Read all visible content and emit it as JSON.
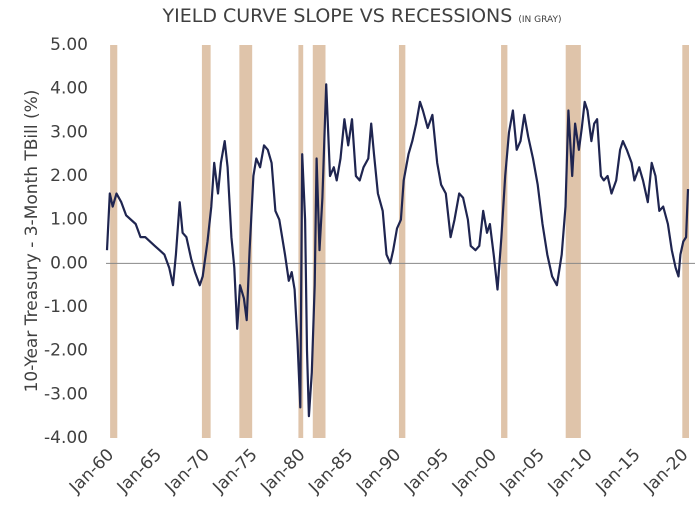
{
  "chart_data": {
    "type": "line",
    "title": "YIELD CURVE SLOPE VS RECESSIONS",
    "subtitle": "(IN GRAY)",
    "y_label": "10-Year Treasury - 3-Month TBill (%)",
    "xlim": [
      1959.9,
      2020.8
    ],
    "ylim": [
      -4,
      5
    ],
    "yticks": [
      {
        "value": 5,
        "label": "5.00"
      },
      {
        "value": 4,
        "label": "4.00"
      },
      {
        "value": 3,
        "label": "3.00"
      },
      {
        "value": 2,
        "label": "2.00"
      },
      {
        "value": 1,
        "label": "1.00"
      },
      {
        "value": 0,
        "label": "0.00"
      },
      {
        "value": -1,
        "label": "-1.00"
      },
      {
        "value": -2,
        "label": "-2.00"
      },
      {
        "value": -3,
        "label": "-3.00"
      },
      {
        "value": -4,
        "label": "-4.00"
      }
    ],
    "xticks": [
      {
        "value": 1960,
        "label": "Jan-60"
      },
      {
        "value": 1965,
        "label": "Jan-65"
      },
      {
        "value": 1970,
        "label": "Jan-70"
      },
      {
        "value": 1975,
        "label": "Jan-75"
      },
      {
        "value": 1980,
        "label": "Jan-80"
      },
      {
        "value": 1985,
        "label": "Jan-85"
      },
      {
        "value": 1990,
        "label": "Jan-90"
      },
      {
        "value": 1995,
        "label": "Jan-95"
      },
      {
        "value": 2000,
        "label": "Jan-00"
      },
      {
        "value": 2005,
        "label": "Jan-05"
      },
      {
        "value": 2010,
        "label": "Jan-10"
      },
      {
        "value": 2015,
        "label": "Jan-15"
      },
      {
        "value": 2020,
        "label": "Jan-20"
      }
    ],
    "recession_color": "#dfc4aa",
    "recessions": [
      [
        1960.33,
        1961.08
      ],
      [
        1969.92,
        1970.83
      ],
      [
        1973.83,
        1975.17
      ],
      [
        1980.0,
        1980.5
      ],
      [
        1981.5,
        1982.83
      ],
      [
        1990.5,
        1991.17
      ],
      [
        2001.17,
        2001.83
      ],
      [
        2007.92,
        2009.5
      ],
      [
        2020.1,
        2020.8
      ]
    ],
    "series": [
      {
        "name": "Yield curve slope",
        "color": "#1f2550",
        "x": [
          1960.0,
          1960.3,
          1960.6,
          1961.0,
          1961.5,
          1962,
          1963,
          1963.5,
          1964,
          1965,
          1965.5,
          1966,
          1966.5,
          1966.9,
          1967.2,
          1967.6,
          1967.9,
          1968.3,
          1968.8,
          1969.2,
          1969.7,
          1970.0,
          1970.5,
          1970.9,
          1971.2,
          1971.6,
          1971.9,
          1972.3,
          1972.6,
          1973.0,
          1973.3,
          1973.6,
          1973.9,
          1974.3,
          1974.6,
          1974.9,
          1975.3,
          1975.6,
          1976.0,
          1976.4,
          1976.8,
          1977.2,
          1977.6,
          1978.0,
          1978.6,
          1979.0,
          1979.3,
          1979.6,
          1979.9,
          1980.2,
          1980.4,
          1980.7,
          1980.9,
          1981.1,
          1981.4,
          1981.7,
          1981.9,
          1982.2,
          1982.5,
          1982.9,
          1983.3,
          1983.7,
          1984.0,
          1984.4,
          1984.8,
          1985.2,
          1985.6,
          1986.0,
          1986.4,
          1986.8,
          1987.3,
          1987.6,
          1987.9,
          1988.3,
          1988.8,
          1989.2,
          1989.6,
          1989.9,
          1990.3,
          1990.7,
          1991.0,
          1991.5,
          1991.9,
          1992.3,
          1992.7,
          1993.0,
          1993.5,
          1994.0,
          1994.5,
          1994.9,
          1995.4,
          1995.9,
          1996.3,
          1996.8,
          1997.2,
          1997.7,
          1998.0,
          1998.5,
          1998.9,
          1999.3,
          1999.7,
          2000.0,
          2000.4,
          2000.8,
          2001.2,
          2001.6,
          2002.0,
          2002.4,
          2002.8,
          2003.2,
          2003.6,
          2004.0,
          2004.5,
          2005.0,
          2005.5,
          2006.0,
          2006.5,
          2007.0,
          2007.5,
          2007.9,
          2008.2,
          2008.6,
          2008.9,
          2009.3,
          2009.6,
          2009.9,
          2010.2,
          2010.6,
          2010.9,
          2011.2,
          2011.6,
          2011.9,
          2012.3,
          2012.7,
          2013.2,
          2013.6,
          2013.9,
          2014.3,
          2014.8,
          2015.1,
          2015.6,
          2016.0,
          2016.5,
          2016.9,
          2017.3,
          2017.7,
          2018.1,
          2018.6,
          2019.0,
          2019.4,
          2019.7,
          2019.9,
          2020.2,
          2020.5,
          2020.7
        ],
        "values": [
          0.3,
          1.6,
          1.3,
          1.6,
          1.4,
          1.1,
          0.9,
          0.6,
          0.6,
          0.4,
          0.3,
          0.2,
          -0.1,
          -0.5,
          0.2,
          1.4,
          0.7,
          0.6,
          0.1,
          -0.2,
          -0.5,
          -0.3,
          0.5,
          1.3,
          2.3,
          1.6,
          2.3,
          2.8,
          2.2,
          0.6,
          -0.1,
          -1.5,
          -0.5,
          -0.8,
          -1.3,
          0.3,
          2.0,
          2.4,
          2.2,
          2.7,
          2.6,
          2.3,
          1.2,
          1.0,
          0.2,
          -0.4,
          -0.2,
          -0.6,
          -1.8,
          -3.3,
          2.5,
          1.0,
          -2.0,
          -3.5,
          -2.5,
          -0.5,
          2.4,
          0.3,
          1.5,
          4.1,
          2.0,
          2.2,
          1.9,
          2.4,
          3.3,
          2.7,
          3.3,
          2.0,
          1.9,
          2.2,
          2.4,
          3.2,
          2.5,
          1.6,
          1.2,
          0.2,
          0.0,
          0.3,
          0.8,
          1.0,
          1.9,
          2.5,
          2.8,
          3.2,
          3.7,
          3.5,
          3.1,
          3.4,
          2.3,
          1.8,
          1.6,
          0.6,
          1.0,
          1.6,
          1.5,
          1.0,
          0.4,
          0.3,
          0.4,
          1.2,
          0.7,
          0.9,
          0.2,
          -0.6,
          0.6,
          2.0,
          3.0,
          3.5,
          2.6,
          2.8,
          3.4,
          2.9,
          2.4,
          1.8,
          0.9,
          0.2,
          -0.3,
          -0.5,
          0.2,
          1.3,
          3.5,
          2.0,
          3.2,
          2.6,
          3.1,
          3.7,
          3.5,
          2.8,
          3.2,
          3.3,
          2.0,
          1.9,
          2.0,
          1.6,
          1.9,
          2.6,
          2.8,
          2.6,
          2.3,
          1.9,
          2.2,
          1.9,
          1.4,
          2.3,
          2.0,
          1.2,
          1.3,
          0.9,
          0.3,
          -0.1,
          -0.3,
          0.2,
          0.5,
          0.6,
          1.7
        ]
      }
    ]
  }
}
